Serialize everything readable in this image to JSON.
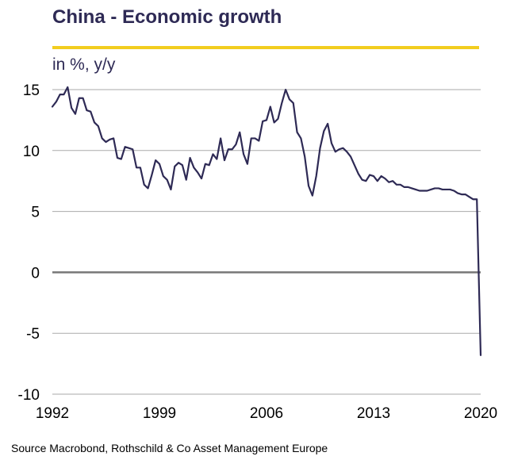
{
  "title": "China - Economic growth",
  "source": "Source Macrobond,  Rothschild & Co Asset Management  Europe",
  "colors": {
    "title": "#2e2a55",
    "accent_rule": "#f2cd1f",
    "line": "#2e2a55",
    "grid": "#aaaaaa",
    "zero_line": "#777777"
  },
  "chart_data": {
    "type": "line",
    "ylabel": "in %, y/y",
    "xlabel": "",
    "ylim": [
      -10,
      15
    ],
    "xlim": [
      1992,
      2020
    ],
    "yticks": [
      15,
      10,
      5,
      0,
      -5,
      -10
    ],
    "xticks": [
      1992,
      1999,
      2006,
      2013,
      2020
    ],
    "grid": true,
    "legend": "none",
    "series": [
      {
        "name": "",
        "x": [
          1992.0,
          1992.25,
          1992.5,
          1992.75,
          1993.0,
          1993.25,
          1993.5,
          1993.75,
          1994.0,
          1994.25,
          1994.5,
          1994.75,
          1995.0,
          1995.25,
          1995.5,
          1995.75,
          1996.0,
          1996.25,
          1996.5,
          1996.75,
          1997.0,
          1997.25,
          1997.5,
          1997.75,
          1998.0,
          1998.25,
          1998.5,
          1998.75,
          1999.0,
          1999.25,
          1999.5,
          1999.75,
          2000.0,
          2000.25,
          2000.5,
          2000.75,
          2001.0,
          2001.25,
          2001.5,
          2001.75,
          2002.0,
          2002.25,
          2002.5,
          2002.75,
          2003.0,
          2003.25,
          2003.5,
          2003.75,
          2004.0,
          2004.25,
          2004.5,
          2004.75,
          2005.0,
          2005.25,
          2005.5,
          2005.75,
          2006.0,
          2006.25,
          2006.5,
          2006.75,
          2007.0,
          2007.25,
          2007.5,
          2007.75,
          2008.0,
          2008.25,
          2008.5,
          2008.75,
          2009.0,
          2009.25,
          2009.5,
          2009.75,
          2010.0,
          2010.25,
          2010.5,
          2010.75,
          2011.0,
          2011.25,
          2011.5,
          2011.75,
          2012.0,
          2012.25,
          2012.5,
          2012.75,
          2013.0,
          2013.25,
          2013.5,
          2013.75,
          2014.0,
          2014.25,
          2014.5,
          2014.75,
          2015.0,
          2015.25,
          2015.5,
          2015.75,
          2016.0,
          2016.25,
          2016.5,
          2016.75,
          2017.0,
          2017.25,
          2017.5,
          2017.75,
          2018.0,
          2018.25,
          2018.5,
          2018.75,
          2019.0,
          2019.25,
          2019.5,
          2019.75,
          2020.0
        ],
        "values": [
          13.6,
          14.0,
          14.6,
          14.6,
          15.2,
          13.5,
          13.0,
          14.3,
          14.3,
          13.3,
          13.2,
          12.3,
          12.0,
          11.0,
          10.7,
          10.9,
          11.0,
          9.4,
          9.3,
          10.3,
          10.2,
          10.1,
          8.6,
          8.6,
          7.2,
          6.9,
          8.0,
          9.2,
          8.9,
          7.9,
          7.6,
          6.8,
          8.7,
          9.0,
          8.8,
          7.6,
          9.4,
          8.6,
          8.2,
          7.7,
          8.9,
          8.8,
          9.7,
          9.3,
          11.0,
          9.2,
          10.1,
          10.1,
          10.5,
          11.5,
          9.7,
          8.9,
          11.0,
          11.0,
          10.8,
          12.4,
          12.5,
          13.6,
          12.3,
          12.6,
          13.9,
          15.0,
          14.2,
          13.9,
          11.5,
          11.0,
          9.5,
          7.1,
          6.3,
          7.9,
          10.2,
          11.6,
          12.2,
          10.6,
          9.9,
          10.1,
          10.2,
          9.9,
          9.5,
          8.8,
          8.1,
          7.6,
          7.5,
          8.0,
          7.9,
          7.5,
          7.9,
          7.7,
          7.4,
          7.5,
          7.2,
          7.2,
          7.0,
          7.0,
          6.9,
          6.8,
          6.7,
          6.7,
          6.7,
          6.8,
          6.9,
          6.9,
          6.8,
          6.8,
          6.8,
          6.7,
          6.5,
          6.4,
          6.4,
          6.2,
          6.0,
          6.0,
          -6.8
        ]
      }
    ]
  }
}
